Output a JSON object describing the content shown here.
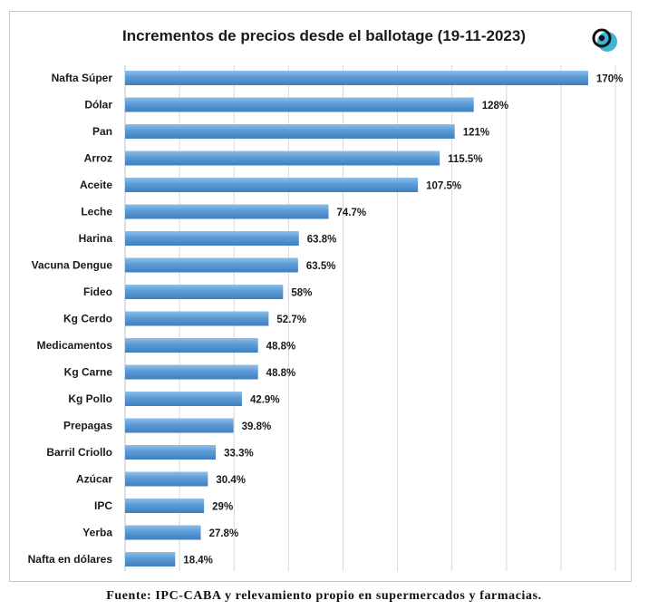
{
  "chart_data": {
    "type": "bar",
    "orientation": "horizontal",
    "title": "Incrementos de precios desde el ballotage (19-11-2023)",
    "categories": [
      "Nafta Súper",
      "Dólar",
      "Pan",
      "Arroz",
      "Aceite",
      "Leche",
      "Harina",
      "Vacuna Dengue",
      "Fideo",
      "Kg Cerdo",
      "Medicamentos",
      "Kg Carne",
      "Kg Pollo",
      "Prepagas",
      "Barril Criollo",
      "Azúcar",
      "IPC",
      "Yerba",
      "Nafta en dólares"
    ],
    "values": [
      170,
      128,
      121,
      115.5,
      107.5,
      74.7,
      63.8,
      63.5,
      58,
      52.7,
      48.8,
      48.8,
      42.9,
      39.8,
      33.3,
      30.4,
      29,
      27.8,
      18.4
    ],
    "value_labels": [
      "170%",
      "128%",
      "121%",
      "115.5%",
      "107.5%",
      "74.7%",
      "63.8%",
      "63.5%",
      "58%",
      "52.7%",
      "48.8%",
      "48.8%",
      "42.9%",
      "39.8%",
      "33.3%",
      "30.4%",
      "29%",
      "27.8%",
      "18.4%"
    ],
    "xlim": [
      0,
      180
    ],
    "grid": "vertical",
    "bar_color": "#5b9bd5",
    "xlabel": "",
    "ylabel": ""
  },
  "source_note": "Fuente:  IPC-CABA  y relevamiento  propio  en  supermercados  y farmacias.",
  "logo": {
    "icon": "circular-logo-icon",
    "color_dark": "#111111",
    "color_accent": "#3fb5d6"
  }
}
